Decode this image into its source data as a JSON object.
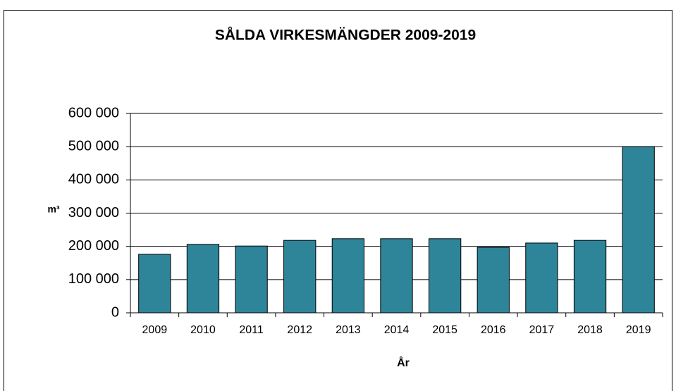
{
  "chart_data": {
    "type": "bar",
    "title": "SÅLDA VIRKESMÄNGDER 2009-2019",
    "y_label": "m³",
    "x_label": "År",
    "categories": [
      "2009",
      "2010",
      "2011",
      "2012",
      "2013",
      "2014",
      "2015",
      "2016",
      "2017",
      "2018",
      "2019"
    ],
    "values": [
      176000,
      206000,
      201000,
      218000,
      223000,
      223000,
      223000,
      197000,
      210000,
      218000,
      500000
    ],
    "color": "#2e8499",
    "ylim": [
      0,
      600000
    ],
    "yticks": [
      0,
      {
        "value": 100000,
        "label": "100 000"
      },
      {
        "value": 200000,
        "label": "200 000"
      },
      {
        "value": 300000,
        "label": "300 000"
      },
      {
        "value": 400000,
        "label": "400 000"
      },
      {
        "value": 500000,
        "label": "500 000"
      },
      {
        "value": 600000,
        "label": "600 000"
      }
    ],
    "grid": true
  }
}
